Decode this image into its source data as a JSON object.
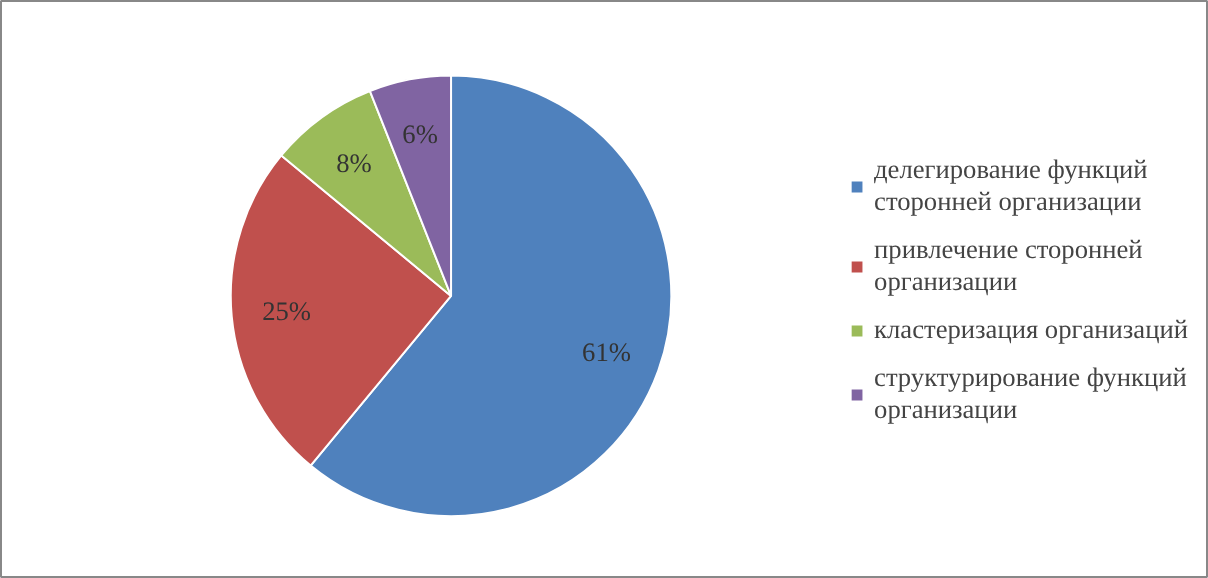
{
  "chart_data": {
    "type": "pie",
    "categories": [
      "делегирование функций сторонней организации",
      "привлечение сторонней организации",
      "кластеризация организаций",
      "структурирование функций организации"
    ],
    "values": [
      61,
      25,
      8,
      6
    ],
    "colors": [
      "#4f81bd",
      "#c0504d",
      "#9bbb59",
      "#8064a2"
    ],
    "value_labels": [
      "61%",
      "25%",
      "8%",
      "6%"
    ],
    "legend": "right"
  }
}
